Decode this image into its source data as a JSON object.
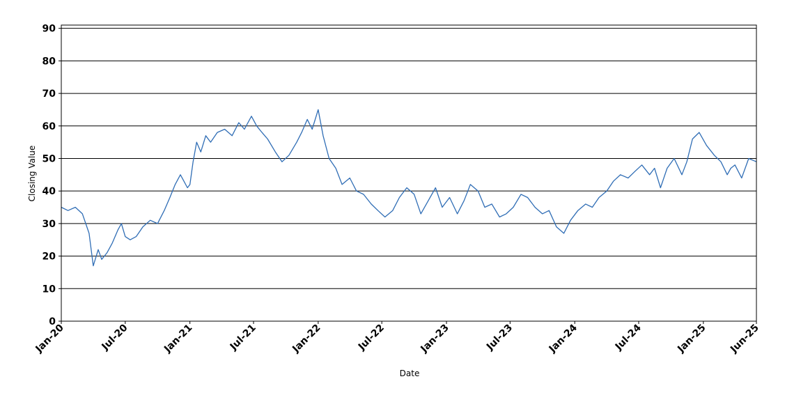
{
  "chart_data": {
    "type": "line",
    "title": "",
    "xlabel": "Date",
    "ylabel": "Closing Value",
    "x_range": [
      "2020-01-01",
      "2025-06-01"
    ],
    "ylim": [
      0,
      91
    ],
    "y_ticks": [
      0,
      10,
      20,
      30,
      40,
      50,
      60,
      70,
      80,
      90
    ],
    "x_ticks": [
      {
        "date": "2020-01-01",
        "label": "Jan-20"
      },
      {
        "date": "2020-07-01",
        "label": "Jul-20"
      },
      {
        "date": "2021-01-01",
        "label": "Jan-21"
      },
      {
        "date": "2021-07-01",
        "label": "Jul-21"
      },
      {
        "date": "2022-01-01",
        "label": "Jan-22"
      },
      {
        "date": "2022-07-01",
        "label": "Jul-22"
      },
      {
        "date": "2023-01-01",
        "label": "Jan-23"
      },
      {
        "date": "2023-07-01",
        "label": "Jul-23"
      },
      {
        "date": "2024-01-01",
        "label": "Jan-24"
      },
      {
        "date": "2024-07-01",
        "label": "Jul-24"
      },
      {
        "date": "2025-01-01",
        "label": "Jan-25"
      },
      {
        "date": "2025-06-01",
        "label": "Jun-25"
      }
    ],
    "grid": {
      "horizontal": true,
      "vertical": false
    },
    "colors": {
      "line": "#2f6db5",
      "grid": "#000000",
      "axis": "#000000"
    },
    "series": [
      {
        "x": [
          "2020-01-01",
          "2020-01-20",
          "2020-02-10",
          "2020-03-01",
          "2020-03-20",
          "2020-04-01",
          "2020-04-15",
          "2020-04-25",
          "2020-05-10",
          "2020-05-25",
          "2020-06-10",
          "2020-06-20",
          "2020-07-01",
          "2020-07-15",
          "2020-08-01",
          "2020-08-20",
          "2020-09-10",
          "2020-10-01",
          "2020-10-20",
          "2020-11-05",
          "2020-11-20",
          "2020-12-05",
          "2020-12-15",
          "2020-12-25",
          "2021-01-01",
          "2021-01-10",
          "2021-01-20",
          "2021-02-01",
          "2021-02-15",
          "2021-03-01",
          "2021-03-20",
          "2021-04-10",
          "2021-05-01",
          "2021-05-20",
          "2021-06-05",
          "2021-06-25",
          "2021-07-10",
          "2021-07-25",
          "2021-08-10",
          "2021-09-01",
          "2021-09-20",
          "2021-10-10",
          "2021-11-01",
          "2021-11-15",
          "2021-12-01",
          "2021-12-15",
          "2022-01-01",
          "2022-01-15",
          "2022-02-01",
          "2022-02-20",
          "2022-03-10",
          "2022-04-01",
          "2022-04-20",
          "2022-05-10",
          "2022-06-01",
          "2022-06-20",
          "2022-07-10",
          "2022-08-01",
          "2022-08-20",
          "2022-09-10",
          "2022-10-01",
          "2022-10-20",
          "2022-11-10",
          "2022-12-01",
          "2022-12-20",
          "2023-01-10",
          "2023-02-01",
          "2023-02-20",
          "2023-03-10",
          "2023-04-01",
          "2023-04-20",
          "2023-05-10",
          "2023-06-01",
          "2023-06-20",
          "2023-07-10",
          "2023-08-01",
          "2023-08-20",
          "2023-09-10",
          "2023-10-01",
          "2023-10-20",
          "2023-11-10",
          "2023-12-01",
          "2023-12-20",
          "2024-01-10",
          "2024-02-01",
          "2024-02-20",
          "2024-03-10",
          "2024-04-01",
          "2024-04-20",
          "2024-05-10",
          "2024-06-01",
          "2024-06-20",
          "2024-07-10",
          "2024-08-01",
          "2024-08-15",
          "2024-09-01",
          "2024-09-20",
          "2024-10-10",
          "2024-11-01",
          "2024-11-15",
          "2024-12-01",
          "2024-12-20",
          "2025-01-10",
          "2025-02-01",
          "2025-02-20",
          "2025-03-10",
          "2025-03-20",
          "2025-04-01",
          "2025-04-20",
          "2025-05-10",
          "2025-06-01"
        ],
        "values": [
          35,
          34,
          35,
          33,
          27,
          17,
          22,
          19,
          21,
          24,
          28,
          30,
          26,
          25,
          26,
          29,
          31,
          30,
          34,
          38,
          42,
          45,
          43,
          41,
          42,
          49,
          55,
          52,
          57,
          55,
          58,
          59,
          57,
          61,
          59,
          63,
          60,
          58,
          56,
          52,
          49,
          51,
          55,
          58,
          62,
          59,
          65,
          57,
          50,
          47,
          42,
          44,
          40,
          39,
          36,
          34,
          32,
          34,
          38,
          41,
          39,
          33,
          37,
          41,
          35,
          38,
          33,
          37,
          42,
          40,
          35,
          36,
          32,
          33,
          35,
          39,
          38,
          35,
          33,
          34,
          29,
          27,
          31,
          34,
          36,
          35,
          38,
          40,
          43,
          45,
          44,
          46,
          48,
          45,
          47,
          41,
          47,
          50,
          45,
          49,
          56,
          58,
          54,
          51,
          49,
          45,
          47,
          48,
          44,
          50,
          49
        ]
      }
    ]
  }
}
